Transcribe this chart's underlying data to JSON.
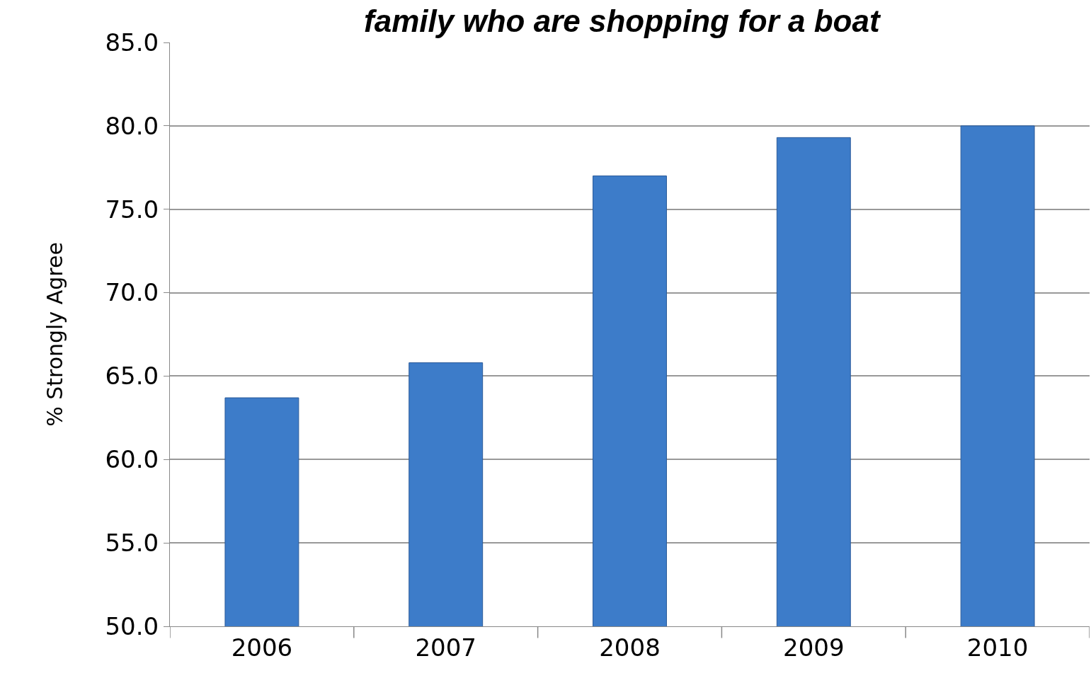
{
  "chart_data": {
    "type": "bar",
    "title": "family who are shopping for a boat",
    "ylabel": "% Strongly Agree",
    "categories": [
      "2006",
      "2007",
      "2008",
      "2009",
      "2010"
    ],
    "values": [
      63.7,
      65.8,
      77.0,
      79.3,
      80.0
    ],
    "color": "#3d7cc9",
    "ylim": [
      50,
      85
    ],
    "yticks": [
      {
        "value": 50,
        "label": "50.0"
      },
      {
        "value": 55,
        "label": "55.0"
      },
      {
        "value": 60,
        "label": "60.0"
      },
      {
        "value": 65,
        "label": "65.0"
      },
      {
        "value": 70,
        "label": "70.0"
      },
      {
        "value": 75,
        "label": "75.0"
      },
      {
        "value": 80,
        "label": "80.0"
      },
      {
        "value": 85,
        "label": "85.0"
      }
    ],
    "grid": "y"
  }
}
